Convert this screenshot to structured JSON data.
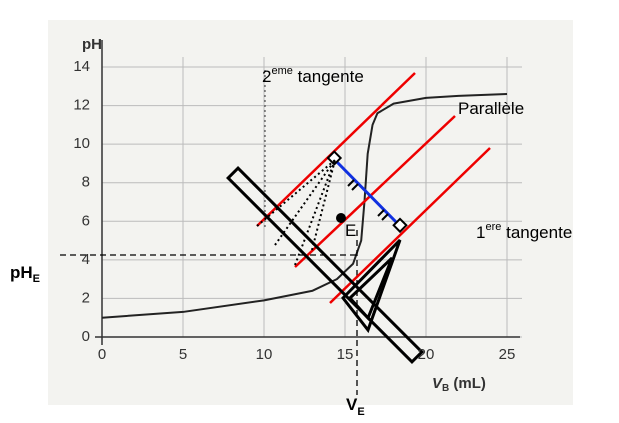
{
  "chart_data": {
    "type": "line",
    "ylabel": "pH",
    "xlabel": {
      "main": "V",
      "sub": "B",
      "rest": " (mL)"
    },
    "x": [
      0,
      5,
      10,
      13,
      14.5,
      15.5,
      16,
      16.2,
      16.4,
      16.7,
      17,
      18,
      20,
      22,
      25
    ],
    "series": [
      {
        "color": "#222222",
        "values": [
          1.0,
          1.3,
          1.9,
          2.4,
          3.0,
          3.8,
          5.0,
          7.0,
          9.5,
          11.0,
          11.6,
          12.1,
          12.4,
          12.5,
          12.6
        ]
      }
    ],
    "xlim": [
      0,
      25
    ],
    "xticks": [
      0,
      5,
      10,
      15,
      20,
      25
    ],
    "ylim": [
      0,
      14
    ],
    "yticks": [
      0,
      2,
      4,
      6,
      8,
      10,
      12,
      14
    ],
    "grid": true,
    "annotations": {
      "second": {
        "main": "2",
        "sup": "eme",
        "rest": " tangente"
      },
      "parallel": "Parallèle",
      "first": {
        "main": "1",
        "sup": "ere",
        "rest": " tangente"
      },
      "point": "E",
      "phe": {
        "main": "pH",
        "sub": "E"
      },
      "ve": {
        "main": "V",
        "sub": "E"
      }
    }
  }
}
